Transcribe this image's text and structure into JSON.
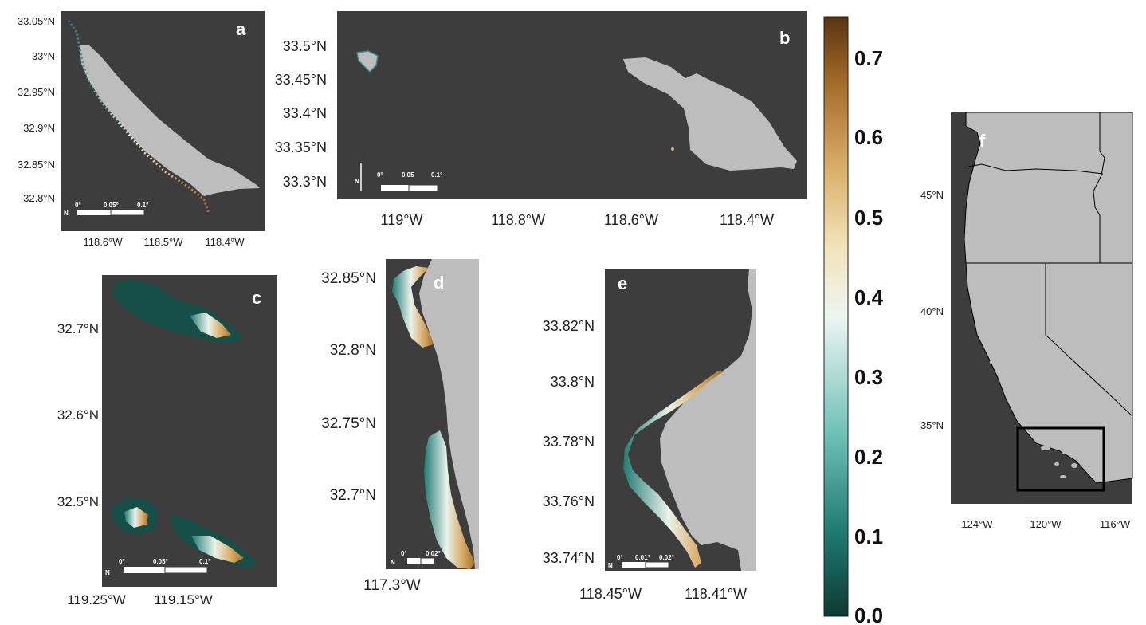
{
  "panels": {
    "a": {
      "label": "a",
      "lat_ticks": [
        "33.05°N",
        "33°N",
        "32.95°N",
        "32.9°N",
        "32.85°N",
        "32.8°N"
      ],
      "lon_ticks": [
        "118.6°W",
        "118.5°W",
        "118.4°W"
      ],
      "scale": [
        "0°",
        "0.05°",
        "0.1°"
      ]
    },
    "b": {
      "label": "b",
      "lat_ticks": [
        "33.5°N",
        "33.45°N",
        "33.4°N",
        "33.35°N",
        "33.3°N"
      ],
      "lon_ticks": [
        "119°W",
        "118.8°W",
        "118.6°W",
        "118.4°W"
      ],
      "scale": [
        "0°",
        "0.05",
        "0.1°"
      ]
    },
    "c": {
      "label": "c",
      "lat_ticks": [
        "32.7°N",
        "32.6°N",
        "32.5°N"
      ],
      "lon_ticks": [
        "119.25°W",
        "119.15°W"
      ],
      "scale": [
        "0°",
        "0.05°",
        "0.1°"
      ]
    },
    "d": {
      "label": "d",
      "lat_ticks": [
        "32.85°N",
        "32.8°N",
        "32.75°N",
        "32.7°N"
      ],
      "lon_ticks": [
        "117.3°W"
      ],
      "scale": [
        "0°",
        "0.02°"
      ]
    },
    "e": {
      "label": "e",
      "lat_ticks": [
        "33.82°N",
        "33.8°N",
        "33.78°N",
        "33.76°N",
        "33.74°N"
      ],
      "lon_ticks": [
        "118.45°W",
        "118.41°W"
      ],
      "scale": [
        "0°",
        "0.01°",
        "0.02°"
      ]
    },
    "f": {
      "label": "f",
      "lat_ticks": [
        "45°N",
        "40°N",
        "35°N"
      ],
      "lon_ticks": [
        "124°W",
        "120°W",
        "116°W"
      ]
    }
  },
  "colorbar": {
    "labels": [
      "0.7",
      "0.6",
      "0.5",
      "0.4",
      "0.3",
      "0.2",
      "0.1",
      "0.0"
    ],
    "values": [
      0.7,
      0.6,
      0.5,
      0.4,
      0.3,
      0.2,
      0.1,
      0.0
    ],
    "range": [
      0.0,
      0.75
    ],
    "colors": [
      "#0d3a33",
      "#1f7a72",
      "#6cc0b6",
      "#e4f1ee",
      "#f2e2b8",
      "#d9ad68",
      "#a8702c",
      "#5a3410"
    ]
  },
  "colors": {
    "ocean": "#3d3d3d",
    "land": "#bdbdbd",
    "border": "#000000"
  }
}
